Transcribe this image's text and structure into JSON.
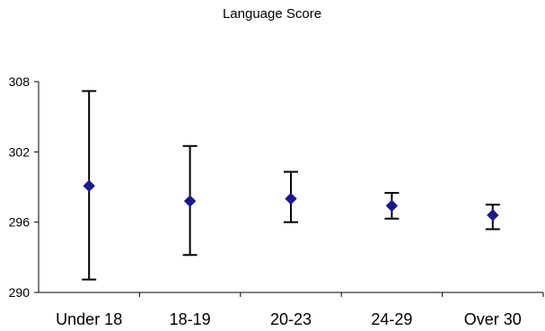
{
  "chart_data": {
    "type": "scatter",
    "title": "Language Score",
    "xlabel": "",
    "ylabel": "",
    "categories": [
      "Under 18",
      "18-19",
      "20-23",
      "24-29",
      "Over 30"
    ],
    "mean": [
      299.1,
      297.8,
      298.0,
      297.4,
      296.6
    ],
    "lower": [
      291.1,
      293.2,
      296.0,
      296.3,
      295.4
    ],
    "upper": [
      307.2,
      302.5,
      300.3,
      298.5,
      297.5
    ],
    "ylim": [
      290,
      308
    ],
    "yticks": [
      290,
      296,
      302,
      308
    ],
    "grid": false,
    "marker": "diamond",
    "marker_color": "#1a1a8c",
    "errorbar_color": "#000000"
  }
}
